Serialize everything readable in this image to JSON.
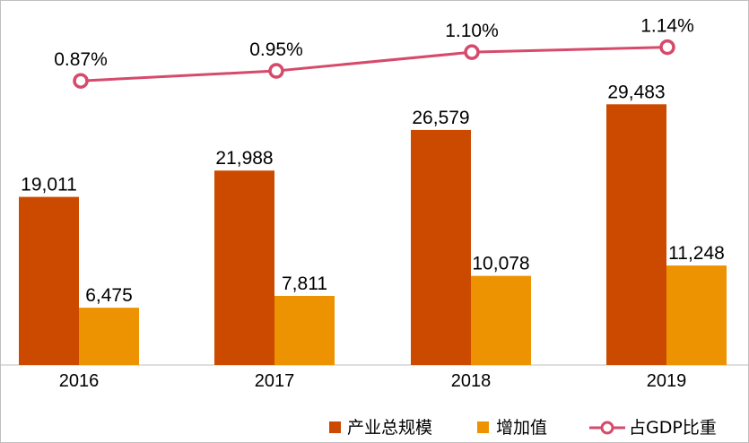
{
  "chart_data": {
    "type": "bar",
    "categories": [
      "2016",
      "2017",
      "2018",
      "2019"
    ],
    "series": [
      {
        "name": "产业总规模",
        "type": "bar",
        "color": "#cc4a00",
        "values": [
          19011,
          21988,
          26579,
          29483
        ],
        "labels": [
          "19,011",
          "21,988",
          "26,579",
          "29,483"
        ]
      },
      {
        "name": "增加值",
        "type": "bar",
        "color": "#ed9200",
        "values": [
          6475,
          7811,
          10078,
          11248
        ],
        "labels": [
          "6,475",
          "7,811",
          "10,078",
          "11,248"
        ]
      },
      {
        "name": "占GDP比重",
        "type": "line",
        "color": "#d64a6b",
        "values": [
          0.87,
          0.95,
          1.1,
          1.14
        ],
        "labels": [
          "0.87%",
          "0.95%",
          "1.10%",
          "1.14%"
        ]
      }
    ],
    "legend_position": "bottom-right",
    "grid": false
  }
}
